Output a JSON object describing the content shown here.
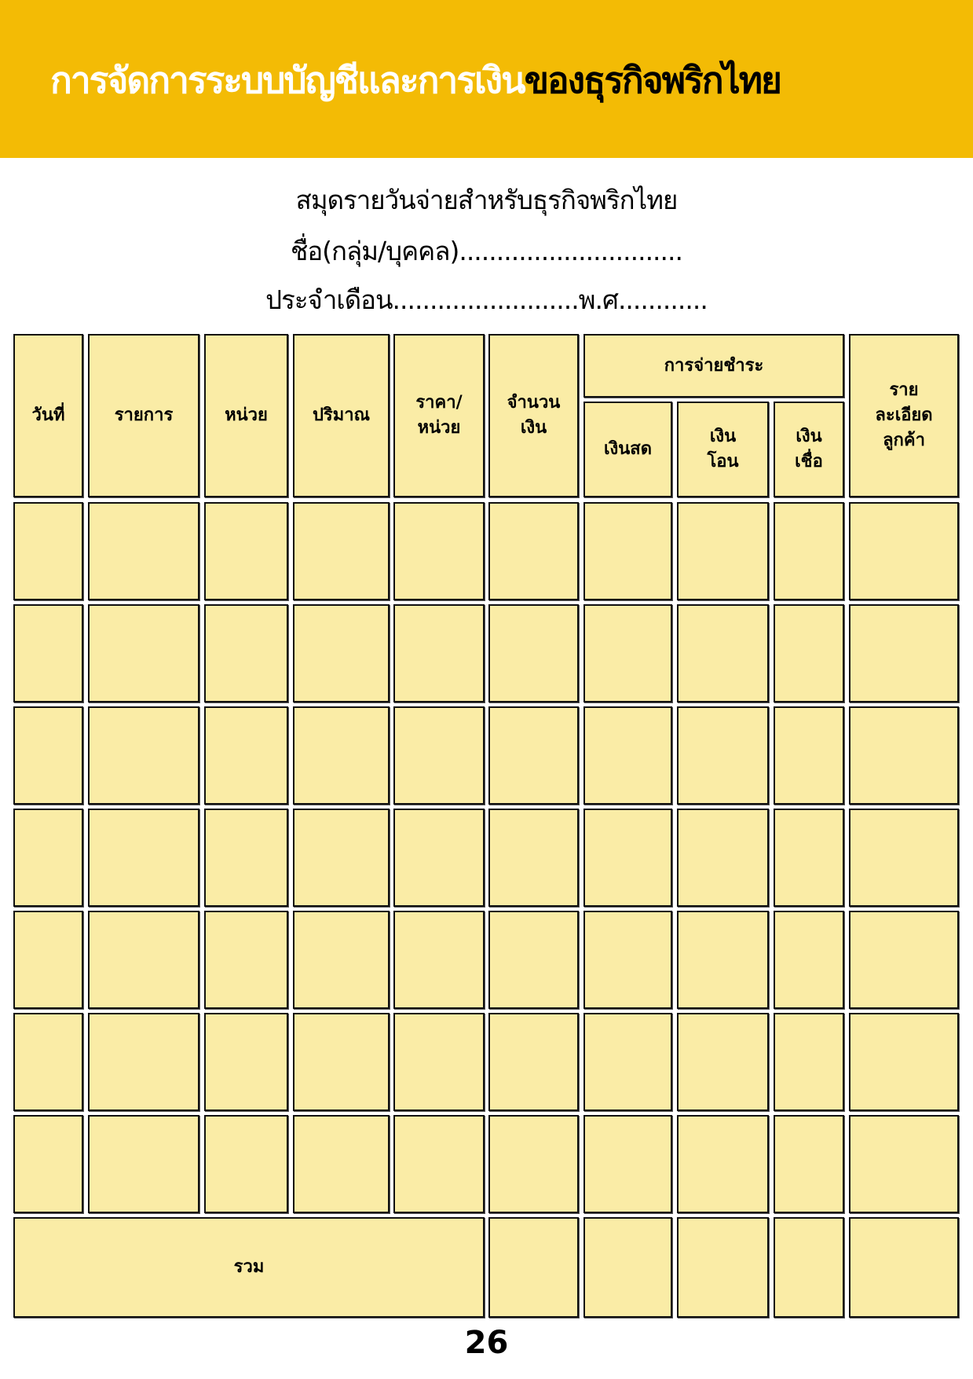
{
  "banner": {
    "title_white": "การจัดการระบบบัญชีและการเงิน",
    "title_black": "ของธุรกิจพริกไทย",
    "color": "#F3BB05"
  },
  "form": {
    "heading": "สมุดรายวันจ่ายสำหรับธุรกิจพริกไทย",
    "name_line": "ชื่อ(กลุ่ม/บุคคล)..............................",
    "month_line": "ประจำเดือน.........................พ.ศ............"
  },
  "table": {
    "headers": [
      "วันที่",
      "รายการ",
      "หน่วย",
      "ปริมาณ",
      "ราคา/\nหน่วย",
      "จำนวน\nเงิน"
    ],
    "payment_group": "การจ่ายชำระ",
    "payment_subheaders": [
      "เงินสด",
      "เงิน\nโอน",
      "เงิน\nเชื่อ"
    ],
    "last_header": "ราย\nละเอียด\nลูกค้า",
    "empty_rows": 7,
    "total_label": "รวม",
    "cell_color": "#FAECA6"
  },
  "page_number": "26"
}
